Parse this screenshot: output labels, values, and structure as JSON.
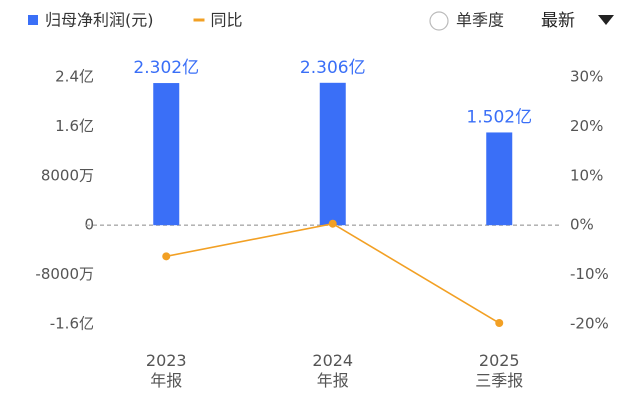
{
  "controls": {
    "period": "单季度",
    "sort": "最新"
  },
  "chart_data": {
    "type": "bar",
    "categories": [
      [
        "2023",
        "年报"
      ],
      [
        "2024",
        "年报"
      ],
      [
        "2025",
        "三季报"
      ]
    ],
    "series": [
      {
        "name": "归母净利润(元)",
        "type": "bar",
        "color": "#3a6ff7",
        "values": [
          2.302,
          2.306,
          1.502
        ],
        "value_labels": [
          "2.302亿",
          "2.306亿",
          "1.502亿"
        ]
      },
      {
        "name": "同比",
        "type": "line",
        "axis": "y2",
        "color": "#f2a024",
        "values": [
          -6.3,
          0.3,
          -19.8
        ]
      }
    ],
    "ylim": [
      -1.6,
      2.4
    ],
    "yticks": [
      {
        "value": 2.4,
        "label": "2.4亿"
      },
      {
        "value": 1.6,
        "label": "1.6亿"
      },
      {
        "value": 0.8,
        "label": "8000万"
      },
      0,
      {
        "value": -0.8,
        "label": "-8000万"
      },
      {
        "value": -1.6,
        "label": "-1.6亿"
      }
    ],
    "y2lim": [
      -20,
      30
    ],
    "y2ticks": [
      {
        "value": 30,
        "label": "30%"
      },
      {
        "value": 20,
        "label": "20%"
      },
      {
        "value": 10,
        "label": "10%"
      },
      {
        "value": 0,
        "label": "0%"
      },
      {
        "value": -10,
        "label": "-10%"
      },
      {
        "value": -20,
        "label": "-20%"
      }
    ],
    "zero_line": true
  }
}
